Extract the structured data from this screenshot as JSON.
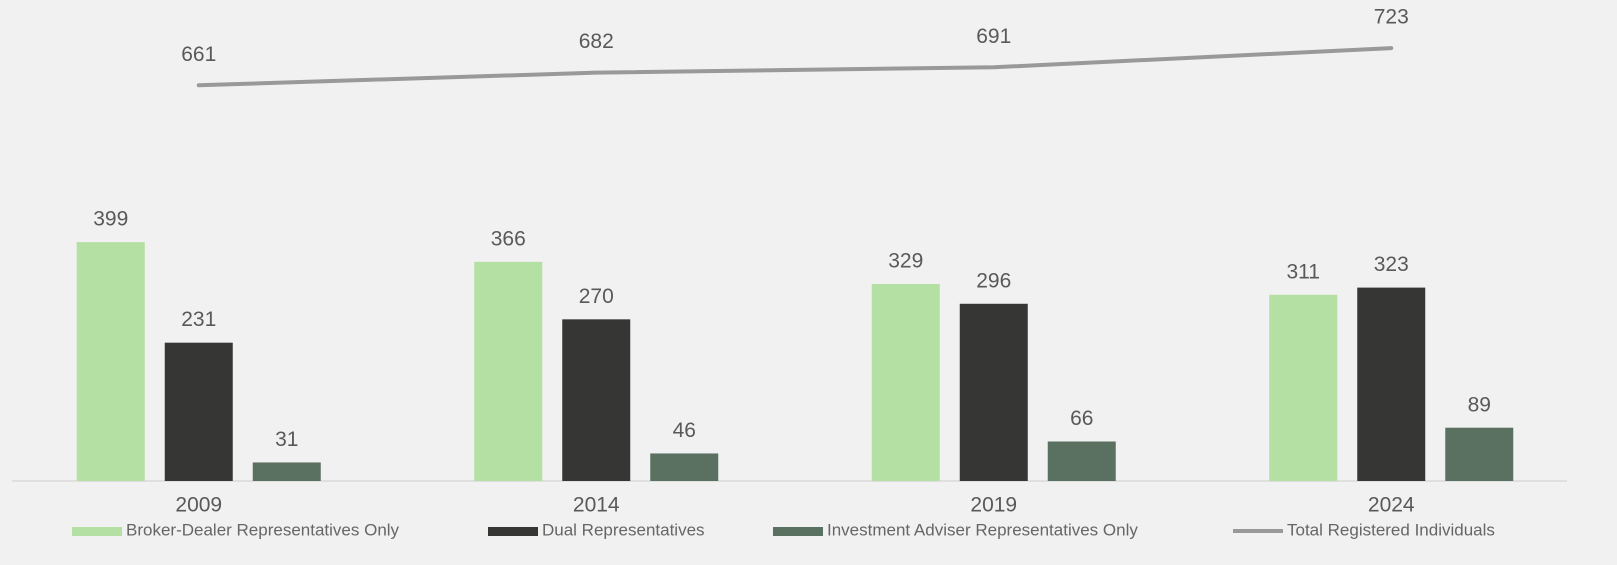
{
  "chart_data": {
    "type": "bar_line",
    "categories": [
      "2009",
      "2014",
      "2019",
      "2024"
    ],
    "series": [
      {
        "name": "Broker-Dealer Representatives Only",
        "type": "bar",
        "color": "#b5e0a3",
        "values": [
          399,
          366,
          329,
          311
        ]
      },
      {
        "name": "Dual Representatives",
        "type": "bar",
        "color": "#363634",
        "values": [
          231,
          270,
          296,
          323
        ]
      },
      {
        "name": "Investment Adviser Representatives Only",
        "type": "bar",
        "color": "#5a7060",
        "values": [
          31,
          46,
          66,
          89
        ]
      },
      {
        "name": "Total Registered Individuals",
        "type": "line",
        "color": "#999999",
        "values": [
          661,
          682,
          691,
          723
        ]
      }
    ],
    "ylim": [
      0,
      800
    ],
    "legend": "bottom"
  }
}
